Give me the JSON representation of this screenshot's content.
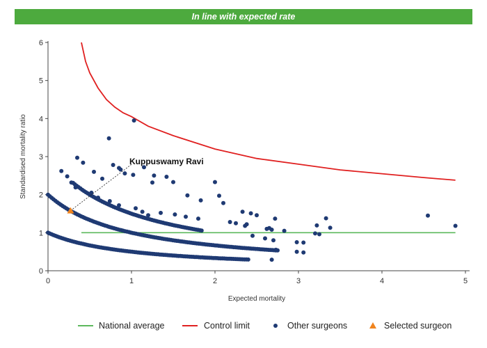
{
  "banner": {
    "text": "In line with expected rate",
    "color": "#4daa3e"
  },
  "chart_data": {
    "type": "scatter",
    "title": "",
    "xlabel": "Expected mortality",
    "ylabel": "Standardised mortality ratio",
    "xlim": [
      0,
      5
    ],
    "ylim": [
      0,
      6
    ],
    "xticks": [
      "0",
      "1",
      "2",
      "3",
      "4",
      "5"
    ],
    "yticks": [
      "0",
      "1",
      "2",
      "3",
      "4",
      "5",
      "6"
    ],
    "grid": false,
    "legend_position": "bottom",
    "colors": {
      "national_average": "#5cb85c",
      "control_limit": "#e02020",
      "other_surgeons": "#1f3a73",
      "selected_surgeon": "#f0841e"
    },
    "national_average": {
      "x": [
        0.4,
        4.88
      ],
      "y": [
        1,
        1
      ]
    },
    "control_limit": {
      "x": [
        0.4,
        0.45,
        0.5,
        0.6,
        0.7,
        0.8,
        0.9,
        1.0,
        1.2,
        1.5,
        2.0,
        2.5,
        3.0,
        3.5,
        4.0,
        4.5,
        4.88
      ],
      "y": [
        6.0,
        5.5,
        5.2,
        4.8,
        4.5,
        4.3,
        4.15,
        4.05,
        3.8,
        3.55,
        3.2,
        2.95,
        2.8,
        2.65,
        2.55,
        2.45,
        2.38
      ]
    },
    "other_surgeons_curves": {
      "k": [
        1,
        2,
        3
      ],
      "x_ranges": [
        [
          0.0,
          2.4
        ],
        [
          0.0,
          2.75
        ],
        [
          0.3,
          1.85
        ]
      ],
      "formula": "y = k / (1 + x)"
    },
    "other_surgeons": {
      "x": [
        1.03,
        0.73,
        0.35,
        0.42,
        0.78,
        0.55,
        0.65,
        0.85,
        0.87,
        0.92,
        1.02,
        1.15,
        1.27,
        1.42,
        1.25,
        0.16,
        0.23,
        0.28,
        0.33,
        0.52,
        0.6,
        0.74,
        0.85,
        1.05,
        1.13,
        1.2,
        1.35,
        1.52,
        1.65,
        1.8,
        1.5,
        1.67,
        1.83,
        2.0,
        2.05,
        2.1,
        2.33,
        2.43,
        2.5,
        2.38,
        2.18,
        2.25,
        2.36,
        2.45,
        2.68,
        2.7,
        2.73,
        2.83,
        2.62,
        2.65,
        3.22,
        3.33,
        3.2,
        3.25,
        3.38,
        2.98,
        3.06,
        2.98,
        3.06,
        4.55,
        4.88,
        2.72,
        2.68,
        2.6
      ],
      "y": [
        3.95,
        3.48,
        2.97,
        2.84,
        2.78,
        2.6,
        2.42,
        2.7,
        2.66,
        2.56,
        2.52,
        2.72,
        2.5,
        2.47,
        2.32,
        2.62,
        2.48,
        2.32,
        2.19,
        2.05,
        1.92,
        1.83,
        1.72,
        1.64,
        1.55,
        1.46,
        1.52,
        1.48,
        1.42,
        1.37,
        2.33,
        1.98,
        1.85,
        2.33,
        1.97,
        1.78,
        1.55,
        1.51,
        1.46,
        1.22,
        1.28,
        1.25,
        1.18,
        0.92,
        1.08,
        0.8,
        0.55,
        1.05,
        1.1,
        1.12,
        1.19,
        1.38,
        0.98,
        0.96,
        1.13,
        0.75,
        0.74,
        0.5,
        0.48,
        1.45,
        1.18,
        1.37,
        0.29,
        0.85
      ]
    },
    "selected_surgeon": {
      "label": "Kuppuswamy Ravi",
      "x": 0.27,
      "y": 1.58,
      "label_x": 1.05,
      "label_y": 2.85
    },
    "legend": [
      {
        "key": "national_average",
        "label": "National average"
      },
      {
        "key": "control_limit",
        "label": "Control limit"
      },
      {
        "key": "other_surgeons",
        "label": "Other surgeons"
      },
      {
        "key": "selected_surgeon",
        "label": "Selected surgeon"
      }
    ]
  }
}
